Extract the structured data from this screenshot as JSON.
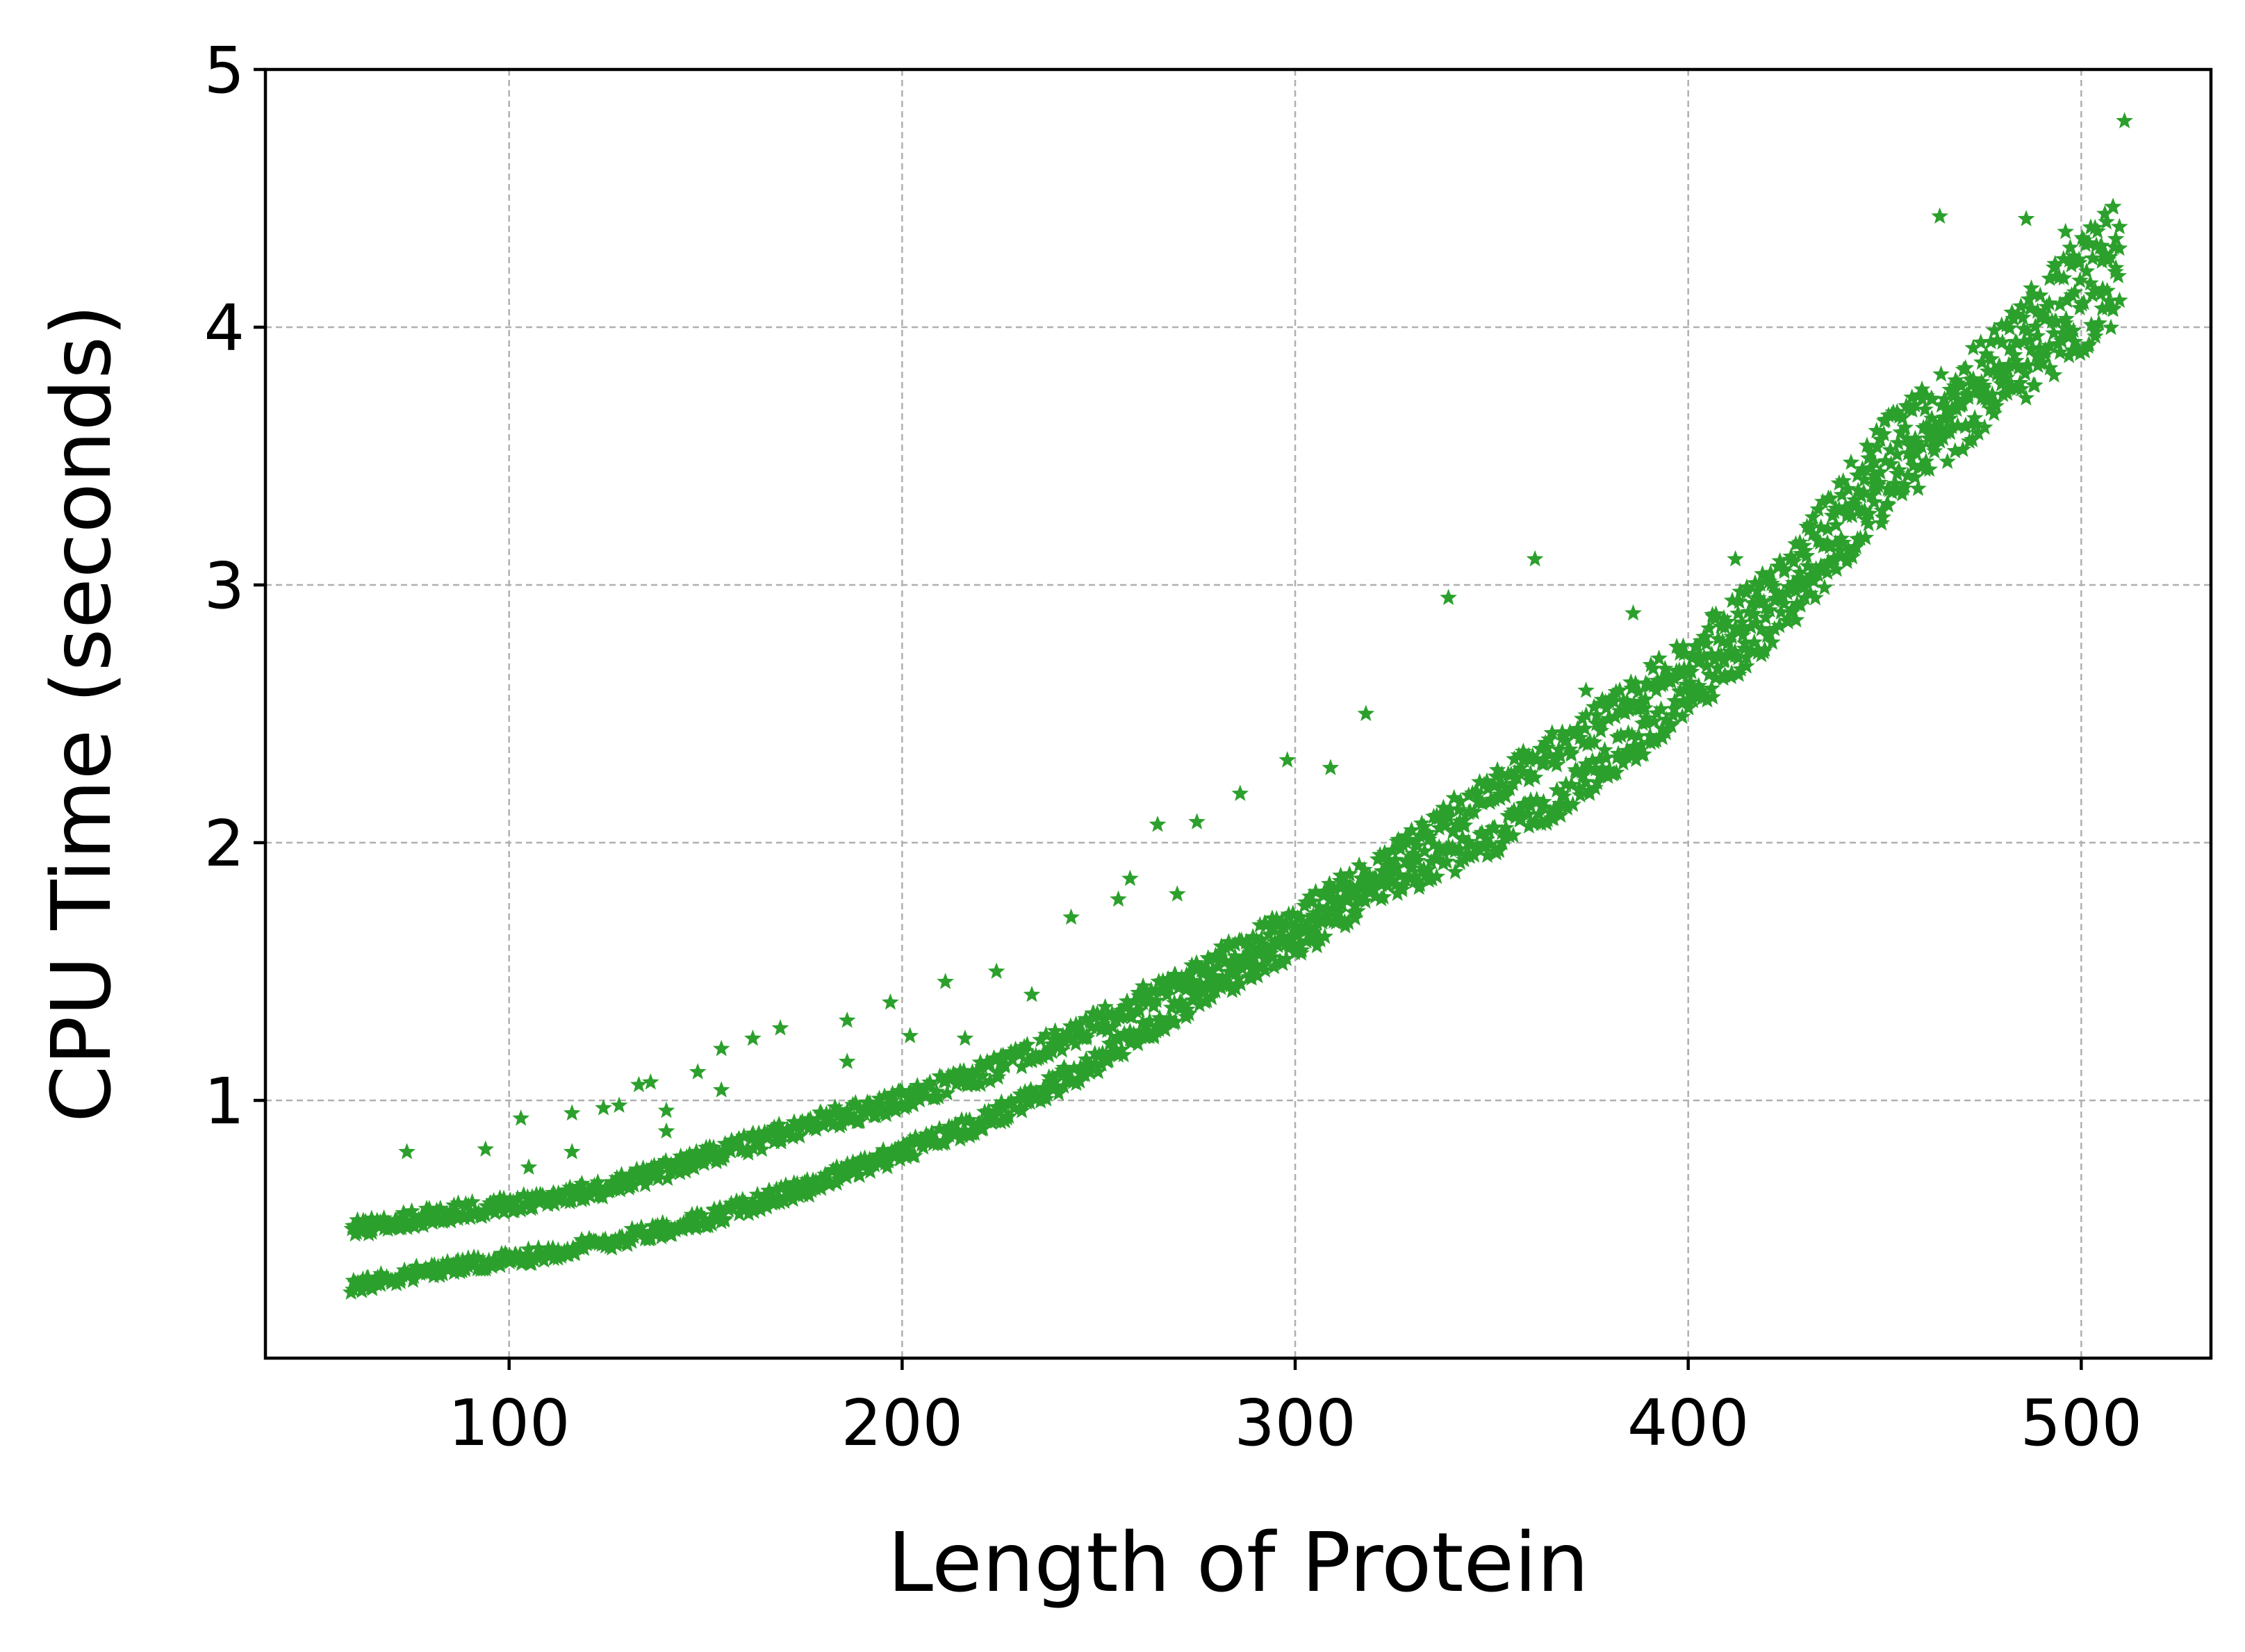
{
  "chart_data": {
    "type": "scatter",
    "title": "",
    "xlabel": "Length of Protein",
    "ylabel": "CPU Time (seconds)",
    "xlim": [
      38,
      533
    ],
    "ylim": [
      0.0,
      5.0
    ],
    "xticks": [
      100,
      200,
      300,
      400,
      500
    ],
    "yticks": [
      1,
      2,
      3,
      4,
      5
    ],
    "grid": true,
    "marker": "star",
    "color": "#2ca02c",
    "bands": [
      {
        "x": [
          60,
          80,
          100,
          125,
          150,
          175,
          200,
          225,
          250,
          275,
          300,
          325,
          350,
          375,
          400,
          425,
          450,
          475,
          500,
          510
        ],
        "y": [
          0.5,
          0.55,
          0.6,
          0.66,
          0.78,
          0.9,
          1.0,
          1.13,
          1.3,
          1.5,
          1.7,
          1.95,
          2.2,
          2.45,
          2.72,
          3.05,
          3.55,
          3.85,
          4.25,
          4.4
        ]
      },
      {
        "x": [
          60,
          80,
          100,
          125,
          150,
          175,
          200,
          225,
          250,
          275,
          300,
          325,
          350,
          375,
          400,
          425,
          450,
          475,
          500,
          510
        ],
        "y": [
          0.28,
          0.34,
          0.38,
          0.45,
          0.54,
          0.66,
          0.8,
          0.95,
          1.15,
          1.4,
          1.6,
          1.85,
          2.0,
          2.25,
          2.55,
          2.9,
          3.35,
          3.7,
          4.0,
          4.15
        ]
      }
    ],
    "outliers": [
      {
        "x": 74,
        "y": 0.8
      },
      {
        "x": 94,
        "y": 0.81
      },
      {
        "x": 103,
        "y": 0.93
      },
      {
        "x": 105,
        "y": 0.74
      },
      {
        "x": 116,
        "y": 0.95
      },
      {
        "x": 116,
        "y": 0.8
      },
      {
        "x": 124,
        "y": 0.97
      },
      {
        "x": 128,
        "y": 0.98
      },
      {
        "x": 133,
        "y": 1.06
      },
      {
        "x": 136,
        "y": 1.07
      },
      {
        "x": 140,
        "y": 0.96
      },
      {
        "x": 140,
        "y": 0.88
      },
      {
        "x": 148,
        "y": 1.11
      },
      {
        "x": 154,
        "y": 1.2
      },
      {
        "x": 154,
        "y": 1.04
      },
      {
        "x": 162,
        "y": 1.24
      },
      {
        "x": 169,
        "y": 1.28
      },
      {
        "x": 186,
        "y": 1.31
      },
      {
        "x": 186,
        "y": 1.15
      },
      {
        "x": 197,
        "y": 1.38
      },
      {
        "x": 202,
        "y": 1.25
      },
      {
        "x": 211,
        "y": 1.46
      },
      {
        "x": 216,
        "y": 1.24
      },
      {
        "x": 224,
        "y": 1.5
      },
      {
        "x": 233,
        "y": 1.41
      },
      {
        "x": 243,
        "y": 1.71
      },
      {
        "x": 255,
        "y": 1.78
      },
      {
        "x": 258,
        "y": 1.86
      },
      {
        "x": 265,
        "y": 2.07
      },
      {
        "x": 270,
        "y": 1.8
      },
      {
        "x": 275,
        "y": 2.08
      },
      {
        "x": 286,
        "y": 2.19
      },
      {
        "x": 298,
        "y": 2.32
      },
      {
        "x": 309,
        "y": 2.29
      },
      {
        "x": 318,
        "y": 2.5
      },
      {
        "x": 339,
        "y": 2.95
      },
      {
        "x": 361,
        "y": 3.1
      },
      {
        "x": 374,
        "y": 2.59
      },
      {
        "x": 386,
        "y": 2.89
      },
      {
        "x": 412,
        "y": 3.1
      },
      {
        "x": 464,
        "y": 4.43
      },
      {
        "x": 486,
        "y": 4.42
      },
      {
        "x": 511,
        "y": 4.8
      },
      {
        "x": 506,
        "y": 4.44
      },
      {
        "x": 496,
        "y": 4.37
      }
    ]
  }
}
